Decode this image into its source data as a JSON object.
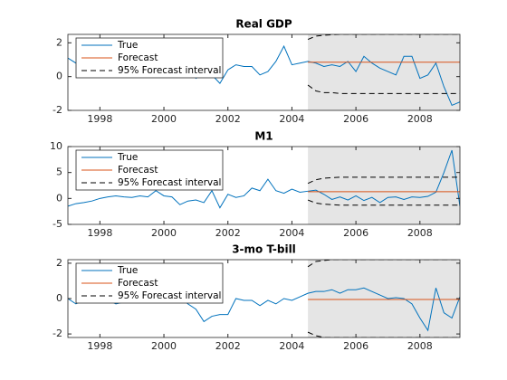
{
  "chart_data": [
    {
      "type": "line",
      "title": "Real GDP",
      "x": [
        1997,
        1997.25,
        1997.5,
        1997.75,
        1998,
        1998.25,
        1998.5,
        1998.75,
        1999,
        1999.25,
        1999.5,
        1999.75,
        2000,
        2000.25,
        2000.5,
        2000.75,
        2001,
        2001.25,
        2001.5,
        2001.75,
        2002,
        2002.25,
        2002.5,
        2002.75,
        2003,
        2003.25,
        2003.5,
        2003.75,
        2004,
        2004.25,
        2004.5,
        2004.75,
        2005,
        2005.25,
        2005.5,
        2005.75,
        2006,
        2006.25,
        2006.5,
        2006.75,
        2007,
        2007.25,
        2007.5,
        2007.75,
        2008,
        2008.25,
        2008.5,
        2008.75,
        2009,
        2009.25
      ],
      "xlim": [
        1997,
        2009.25
      ],
      "xticks": [
        1998,
        2000,
        2002,
        2004,
        2006,
        2008
      ],
      "ylim": [
        -2,
        2.5
      ],
      "yticks": [
        -2,
        0,
        2
      ],
      "legend": "upper left",
      "series": [
        {
          "name": "True",
          "color": "#0072bd",
          "values": [
            1.1,
            0.8,
            1.1,
            0.9,
            1.0,
            0.8,
            0.9,
            1.1,
            0.8,
            0.9,
            1.1,
            1.3,
            0.9,
            1.2,
            0.5,
            0.6,
            -0.1,
            0.2,
            0.1,
            -0.4,
            0.4,
            0.7,
            0.6,
            0.6,
            0.1,
            0.3,
            0.9,
            1.8,
            0.7,
            0.8,
            0.9,
            0.8,
            0.6,
            0.7,
            0.6,
            0.9,
            0.3,
            1.2,
            0.8,
            0.5,
            0.3,
            0.1,
            1.2,
            1.2,
            -0.1,
            0.1,
            0.8,
            -0.6,
            -1.7,
            -1.5
          ]
        },
        {
          "name": "Forecast",
          "color": "#d95319",
          "values": [
            null,
            null,
            null,
            null,
            null,
            null,
            null,
            null,
            null,
            null,
            null,
            null,
            null,
            null,
            null,
            null,
            null,
            null,
            null,
            null,
            null,
            null,
            null,
            null,
            null,
            null,
            null,
            null,
            null,
            null,
            0.85,
            0.85,
            0.85,
            0.85,
            0.85,
            0.85,
            0.85,
            0.85,
            0.85,
            0.85,
            0.85,
            0.85,
            0.85,
            0.85,
            0.85,
            0.85,
            0.85,
            0.85,
            0.85,
            0.85
          ]
        },
        {
          "name": "95% Forecast interval",
          "color": "#000000",
          "dashed": true,
          "values": [
            null,
            null,
            null,
            null,
            null,
            null,
            null,
            null,
            null,
            null,
            null,
            null,
            null,
            null,
            null,
            null,
            null,
            null,
            null,
            null,
            null,
            null,
            null,
            null,
            null,
            null,
            null,
            null,
            null,
            null,
            2.2,
            2.4,
            2.45,
            2.48,
            2.5,
            2.5,
            2.5,
            2.5,
            2.5,
            2.5,
            2.5,
            2.5,
            2.5,
            2.5,
            2.5,
            2.5,
            2.5,
            2.5,
            2.5,
            2.5
          ],
          "lower": [
            null,
            null,
            null,
            null,
            null,
            null,
            null,
            null,
            null,
            null,
            null,
            null,
            null,
            null,
            null,
            null,
            null,
            null,
            null,
            null,
            null,
            null,
            null,
            null,
            null,
            null,
            null,
            null,
            null,
            null,
            -0.5,
            -0.85,
            -0.95,
            -0.95,
            -1.0,
            -1.0,
            -1.0,
            -1.0,
            -1.0,
            -1.0,
            -1.0,
            -1.0,
            -1.0,
            -1.0,
            -1.0,
            -1.0,
            -1.0,
            -1.0,
            -1.0,
            -1.0
          ]
        }
      ]
    },
    {
      "type": "line",
      "title": "M1",
      "x": [
        1997,
        1997.25,
        1997.5,
        1997.75,
        1998,
        1998.25,
        1998.5,
        1998.75,
        1999,
        1999.25,
        1999.5,
        1999.75,
        2000,
        2000.25,
        2000.5,
        2000.75,
        2001,
        2001.25,
        2001.5,
        2001.75,
        2002,
        2002.25,
        2002.5,
        2002.75,
        2003,
        2003.25,
        2003.5,
        2003.75,
        2004,
        2004.25,
        2004.5,
        2004.75,
        2005,
        2005.25,
        2005.5,
        2005.75,
        2006,
        2006.25,
        2006.5,
        2006.75,
        2007,
        2007.25,
        2007.5,
        2007.75,
        2008,
        2008.25,
        2008.5,
        2008.75,
        2009,
        2009.25
      ],
      "xlim": [
        1997,
        2009.25
      ],
      "xticks": [
        1998,
        2000,
        2002,
        2004,
        2006,
        2008
      ],
      "ylim": [
        -5,
        10
      ],
      "yticks": [
        -5,
        0,
        5,
        10
      ],
      "legend": "upper left",
      "series": [
        {
          "name": "True",
          "color": "#0072bd",
          "values": [
            -1.5,
            -1,
            -0.8,
            -0.5,
            0,
            0.3,
            0.5,
            0.3,
            0.2,
            0.5,
            0.3,
            1.5,
            0.5,
            0.3,
            -1.2,
            -0.5,
            -0.3,
            -0.8,
            1.5,
            -1.8,
            0.8,
            0.2,
            0.5,
            2.0,
            1.5,
            3.7,
            1.5,
            1.0,
            1.8,
            1.2,
            1.4,
            1.6,
            0.8,
            -0.2,
            0.3,
            -0.3,
            0.5,
            -0.4,
            0.2,
            -0.8,
            0.2,
            0.3,
            -0.2,
            0.3,
            0.2,
            0.4,
            1.2,
            5.0,
            9.3,
            -1.5
          ]
        },
        {
          "name": "Forecast",
          "color": "#d95319",
          "values": [
            null,
            null,
            null,
            null,
            null,
            null,
            null,
            null,
            null,
            null,
            null,
            null,
            null,
            null,
            null,
            null,
            null,
            null,
            null,
            null,
            null,
            null,
            null,
            null,
            null,
            null,
            null,
            null,
            null,
            null,
            1.3,
            1.3,
            1.3,
            1.3,
            1.3,
            1.3,
            1.3,
            1.3,
            1.3,
            1.3,
            1.3,
            1.3,
            1.3,
            1.3,
            1.3,
            1.3,
            1.3,
            1.3,
            1.3,
            1.3
          ]
        },
        {
          "name": "95% Forecast interval",
          "color": "#000000",
          "dashed": true,
          "values": [
            null,
            null,
            null,
            null,
            null,
            null,
            null,
            null,
            null,
            null,
            null,
            null,
            null,
            null,
            null,
            null,
            null,
            null,
            null,
            null,
            null,
            null,
            null,
            null,
            null,
            null,
            null,
            null,
            null,
            null,
            2.9,
            3.6,
            3.9,
            4.0,
            4.1,
            4.1,
            4.1,
            4.1,
            4.1,
            4.1,
            4.1,
            4.1,
            4.1,
            4.1,
            4.1,
            4.1,
            4.1,
            4.1,
            4.1,
            4.1
          ],
          "lower": [
            null,
            null,
            null,
            null,
            null,
            null,
            null,
            null,
            null,
            null,
            null,
            null,
            null,
            null,
            null,
            null,
            null,
            null,
            null,
            null,
            null,
            null,
            null,
            null,
            null,
            null,
            null,
            null,
            null,
            null,
            -0.3,
            -0.9,
            -1.1,
            -1.2,
            -1.3,
            -1.3,
            -1.3,
            -1.3,
            -1.3,
            -1.3,
            -1.3,
            -1.3,
            -1.3,
            -1.3,
            -1.3,
            -1.3,
            -1.3,
            -1.3,
            -1.3,
            -1.3
          ]
        }
      ]
    },
    {
      "type": "line",
      "title": "3-mo T-bill",
      "x": [
        1997,
        1997.25,
        1997.5,
        1997.75,
        1998,
        1998.25,
        1998.5,
        1998.75,
        1999,
        1999.25,
        1999.5,
        1999.75,
        2000,
        2000.25,
        2000.5,
        2000.75,
        2001,
        2001.25,
        2001.5,
        2001.75,
        2002,
        2002.25,
        2002.5,
        2002.75,
        2003,
        2003.25,
        2003.5,
        2003.75,
        2004,
        2004.25,
        2004.5,
        2004.75,
        2005,
        2005.25,
        2005.5,
        2005.75,
        2006,
        2006.25,
        2006.5,
        2006.75,
        2007,
        2007.25,
        2007.5,
        2007.75,
        2008,
        2008.25,
        2008.5,
        2008.75,
        2009,
        2009.25
      ],
      "xlim": [
        1997,
        2009.25
      ],
      "xticks": [
        1998,
        2000,
        2002,
        2004,
        2006,
        2008
      ],
      "ylim": [
        -2.2,
        2.2
      ],
      "yticks": [
        -2,
        0,
        2
      ],
      "legend": "upper left",
      "series": [
        {
          "name": "True",
          "color": "#0072bd",
          "values": [
            0,
            -0.3,
            -0.1,
            0.1,
            0,
            -0.1,
            -0.3,
            -0.2,
            0.1,
            0.2,
            0.3,
            0.2,
            0.3,
            0.4,
            0.1,
            -0.3,
            -0.6,
            -1.3,
            -1.0,
            -0.9,
            -0.9,
            0,
            -0.1,
            -0.1,
            -0.4,
            -0.1,
            -0.3,
            0,
            -0.1,
            0.1,
            0.3,
            0.4,
            0.4,
            0.5,
            0.3,
            0.5,
            0.5,
            0.6,
            0.4,
            0.2,
            0,
            0.05,
            0,
            -0.3,
            -1.1,
            -1.8,
            0.6,
            -0.8,
            -1.1,
            0.1
          ]
        },
        {
          "name": "Forecast",
          "color": "#d95319",
          "values": [
            null,
            null,
            null,
            null,
            null,
            null,
            null,
            null,
            null,
            null,
            null,
            null,
            null,
            null,
            null,
            null,
            null,
            null,
            null,
            null,
            null,
            null,
            null,
            null,
            null,
            null,
            null,
            null,
            null,
            null,
            -0.05,
            -0.05,
            -0.05,
            -0.05,
            -0.05,
            -0.05,
            -0.05,
            -0.05,
            -0.05,
            -0.05,
            -0.05,
            -0.05,
            -0.05,
            -0.05,
            -0.05,
            -0.05,
            -0.05,
            -0.05,
            -0.05,
            -0.05
          ]
        },
        {
          "name": "95% Forecast interval",
          "color": "#000000",
          "dashed": true,
          "values": [
            null,
            null,
            null,
            null,
            null,
            null,
            null,
            null,
            null,
            null,
            null,
            null,
            null,
            null,
            null,
            null,
            null,
            null,
            null,
            null,
            null,
            null,
            null,
            null,
            null,
            null,
            null,
            null,
            null,
            null,
            1.8,
            2.1,
            2.15,
            2.2,
            2.2,
            2.2,
            2.2,
            2.2,
            2.2,
            2.2,
            2.2,
            2.2,
            2.2,
            2.2,
            2.2,
            2.2,
            2.2,
            2.2,
            2.2,
            2.2
          ],
          "lower": [
            null,
            null,
            null,
            null,
            null,
            null,
            null,
            null,
            null,
            null,
            null,
            null,
            null,
            null,
            null,
            null,
            null,
            null,
            null,
            null,
            null,
            null,
            null,
            null,
            null,
            null,
            null,
            null,
            null,
            null,
            -1.9,
            -2.1,
            -2.2,
            -2.2,
            -2.2,
            -2.2,
            -2.2,
            -2.2,
            -2.2,
            -2.2,
            -2.2,
            -2.2,
            -2.2,
            -2.2,
            -2.2,
            -2.2,
            -2.2,
            -2.2,
            -2.2,
            -2.2
          ]
        }
      ]
    }
  ]
}
